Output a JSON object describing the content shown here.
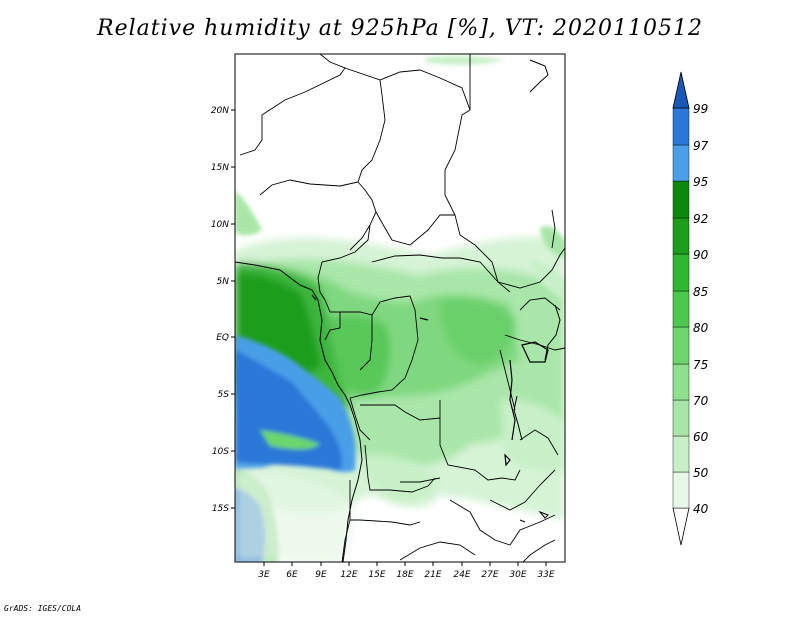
{
  "title": "Relative humidity at 925hPa [%], VT: 2020110512",
  "credit": "GrADS: IGES/COLA",
  "map": {
    "lat_ticks": [
      "20N",
      "15N",
      "10N",
      "5N",
      "EQ",
      "5S",
      "10S",
      "15S"
    ],
    "lon_ticks": [
      "3E",
      "6E",
      "9E",
      "12E",
      "15E",
      "18E",
      "21E",
      "24E",
      "27E",
      "30E",
      "33E"
    ]
  },
  "colorbar": {
    "levels": [
      "40",
      "50",
      "60",
      "70",
      "75",
      "80",
      "85",
      "90",
      "92",
      "95",
      "97",
      "99"
    ],
    "colors": [
      "#ffffff",
      "#e8f8e8",
      "#c8f0c8",
      "#a8e6a8",
      "#8ee08e",
      "#6cd66c",
      "#4cc84c",
      "#2fb82f",
      "#1c9e1c",
      "#0d8a0d",
      "#4aa0e8",
      "#2a78d8",
      "#1a58b8"
    ]
  }
}
